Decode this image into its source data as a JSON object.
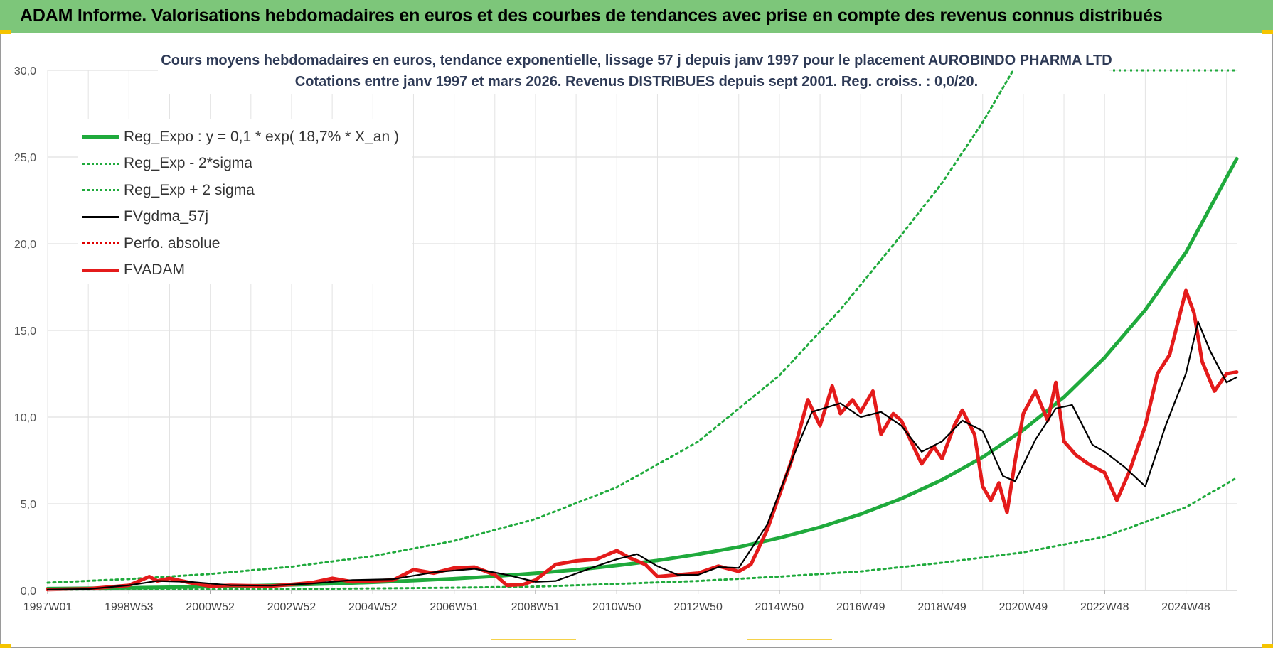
{
  "header": {
    "title": "ADAM Informe. Valorisations hebdomadaires en euros et des courbes de tendances avec prise en compte des revenus connus distribués",
    "accent_color": "#7dc67a"
  },
  "chart_data": {
    "type": "line",
    "title": "Cours moyens hebdomadaires en euros, tendance exponentielle, lissage 57 j depuis janv 1997  pour le placement AUROBINDO PHARMA LTD",
    "subtitle": "Cotations entre janv 1997 et mars 2026. Revenus DISTRIBUES depuis sept 2001. Reg. croiss. : 0,0/20.",
    "xlabel": "",
    "ylabel": "",
    "x_range": [
      1997.0,
      2026.25
    ],
    "ylim": [
      0,
      30
    ],
    "yticks": [
      "0,0",
      "5,0",
      "10,0",
      "15,0",
      "20,0",
      "25,0",
      "30,0"
    ],
    "xticks": [
      {
        "label": "1997W01",
        "x": 1997.0
      },
      {
        "label": "1998W53",
        "x": 1999.0
      },
      {
        "label": "2000W52",
        "x": 2001.0
      },
      {
        "label": "2002W52",
        "x": 2003.0
      },
      {
        "label": "2004W52",
        "x": 2005.0
      },
      {
        "label": "2006W51",
        "x": 2007.0
      },
      {
        "label": "2008W51",
        "x": 2009.0
      },
      {
        "label": "2010W50",
        "x": 2011.0
      },
      {
        "label": "2012W50",
        "x": 2013.0
      },
      {
        "label": "2014W50",
        "x": 2015.0
      },
      {
        "label": "2016W49",
        "x": 2017.0
      },
      {
        "label": "2018W49",
        "x": 2019.0
      },
      {
        "label": "2020W49",
        "x": 2021.0
      },
      {
        "label": "2022W48",
        "x": 2023.0
      },
      {
        "label": "2024W48",
        "x": 2025.0
      }
    ],
    "grid": true,
    "legend_position": "top-left",
    "series": [
      {
        "name": "Reg_Expo : y = 0,1 * exp( 18,7% *  X_an )",
        "color": "#1faa3c",
        "style": "solid-thick",
        "x": [
          1997,
          1998,
          1999,
          2000,
          2001,
          2002,
          2003,
          2004,
          2005,
          2006,
          2007,
          2008,
          2009,
          2010,
          2011,
          2012,
          2013,
          2014,
          2015,
          2016,
          2017,
          2018,
          2019,
          2020,
          2021,
          2022,
          2023,
          2024,
          2025,
          2026.25
        ],
        "y": [
          0.106,
          0.128,
          0.154,
          0.185,
          0.223,
          0.269,
          0.324,
          0.39,
          0.47,
          0.57,
          0.68,
          0.82,
          0.99,
          1.19,
          1.44,
          1.73,
          2.09,
          2.51,
          3.03,
          3.65,
          4.4,
          5.3,
          6.38,
          7.69,
          9.26,
          11.15,
          13.43,
          16.18,
          19.5,
          24.9
        ]
      },
      {
        "name": "Reg_Exp - 2*sigma",
        "color": "#1faa3c",
        "style": "dotted",
        "x": [
          1997,
          1999,
          2001,
          2003,
          2005,
          2007,
          2009,
          2011,
          2013,
          2015,
          2017,
          2019,
          2021,
          2023,
          2025,
          2026.25
        ],
        "y": [
          0.03,
          0.04,
          0.06,
          0.08,
          0.12,
          0.16,
          0.22,
          0.38,
          0.55,
          0.8,
          1.1,
          1.6,
          2.2,
          3.1,
          4.8,
          6.5
        ]
      },
      {
        "name": "Reg_Exp + 2 sigma",
        "color": "#1faa3c",
        "style": "dotted",
        "x": [
          1997,
          1999,
          2001,
          2003,
          2005,
          2007,
          2009,
          2011,
          2013,
          2015,
          2016.5,
          2018,
          2019,
          2020,
          2021,
          2022.0
        ],
        "y": [
          0.45,
          0.66,
          0.95,
          1.37,
          1.98,
          2.86,
          4.12,
          5.95,
          8.58,
          12.4,
          16.2,
          20.5,
          23.5,
          27.0,
          31.0,
          35.0
        ]
      },
      {
        "name": "FVgdma_57j",
        "color": "#000000",
        "style": "solid",
        "x": [
          1997,
          1998,
          1999,
          1999.7,
          2000.5,
          2001.5,
          2002.5,
          2003.5,
          2004.5,
          2005.5,
          2006.5,
          2007.5,
          2008.3,
          2009,
          2009.5,
          2010.5,
          2011,
          2011.5,
          2012,
          2012.5,
          2013,
          2013.5,
          2014,
          2014.7,
          2015.3,
          2015.8,
          2016.5,
          2017,
          2017.5,
          2018,
          2018.5,
          2019,
          2019.5,
          2020,
          2020.5,
          2020.8,
          2021.3,
          2021.8,
          2022.2,
          2022.7,
          2023,
          2023.5,
          2024,
          2024.5,
          2025,
          2025.3,
          2025.6,
          2026,
          2026.25
        ],
        "y": [
          0.05,
          0.08,
          0.3,
          0.55,
          0.5,
          0.3,
          0.28,
          0.4,
          0.6,
          0.65,
          1.05,
          1.25,
          0.9,
          0.5,
          0.55,
          1.4,
          1.8,
          2.1,
          1.4,
          0.9,
          0.9,
          1.35,
          1.3,
          3.8,
          7.5,
          10.3,
          10.8,
          10.0,
          10.3,
          9.5,
          8.0,
          8.6,
          9.8,
          9.2,
          6.6,
          6.3,
          8.7,
          10.5,
          10.7,
          8.4,
          8.0,
          7.1,
          6.0,
          9.5,
          12.5,
          15.5,
          13.8,
          12.0,
          12.3
        ]
      },
      {
        "name": "Perfo. absolue",
        "color": "#e00000",
        "style": "dotted",
        "x": [],
        "y": []
      },
      {
        "name": "FVADAM",
        "color": "#e41b1b",
        "style": "solid-thick",
        "x": [
          1997,
          1998,
          1999,
          1999.5,
          1999.7,
          2000,
          2000.5,
          2001,
          2001.5,
          2002.5,
          2003.5,
          2004,
          2004.5,
          2005.5,
          2006,
          2006.5,
          2007,
          2007.5,
          2008,
          2008.3,
          2008.7,
          2009,
          2009.5,
          2010,
          2010.5,
          2011,
          2011.3,
          2011.7,
          2012,
          2012.5,
          2013,
          2013.5,
          2014,
          2014.3,
          2014.7,
          2015,
          2015.3,
          2015.7,
          2016,
          2016.3,
          2016.5,
          2016.8,
          2017,
          2017.3,
          2017.5,
          2017.8,
          2018,
          2018.5,
          2018.8,
          2019,
          2019.3,
          2019.5,
          2019.8,
          2020,
          2020.2,
          2020.4,
          2020.6,
          2020.8,
          2021,
          2021.3,
          2021.6,
          2021.8,
          2022,
          2022.3,
          2022.6,
          2023,
          2023.3,
          2023.6,
          2024,
          2024.3,
          2024.6,
          2025,
          2025.2,
          2025.4,
          2025.7,
          2026,
          2026.25
        ],
        "y": [
          0.05,
          0.1,
          0.3,
          0.8,
          0.55,
          0.7,
          0.45,
          0.25,
          0.3,
          0.25,
          0.45,
          0.7,
          0.5,
          0.6,
          1.2,
          1.0,
          1.3,
          1.35,
          0.9,
          0.3,
          0.35,
          0.6,
          1.5,
          1.7,
          1.8,
          2.3,
          1.9,
          1.5,
          0.8,
          0.9,
          1.0,
          1.4,
          1.1,
          1.5,
          3.5,
          5.5,
          7.5,
          11.0,
          9.5,
          11.8,
          10.2,
          11.0,
          10.3,
          11.5,
          9.0,
          10.2,
          9.8,
          7.3,
          8.3,
          7.6,
          9.5,
          10.4,
          9.0,
          6.0,
          5.2,
          6.2,
          4.5,
          7.5,
          10.2,
          11.5,
          9.8,
          12.0,
          8.6,
          7.8,
          7.3,
          6.8,
          5.2,
          6.8,
          9.5,
          12.5,
          13.6,
          17.3,
          16.0,
          13.2,
          11.5,
          12.5,
          12.6
        ]
      }
    ]
  }
}
